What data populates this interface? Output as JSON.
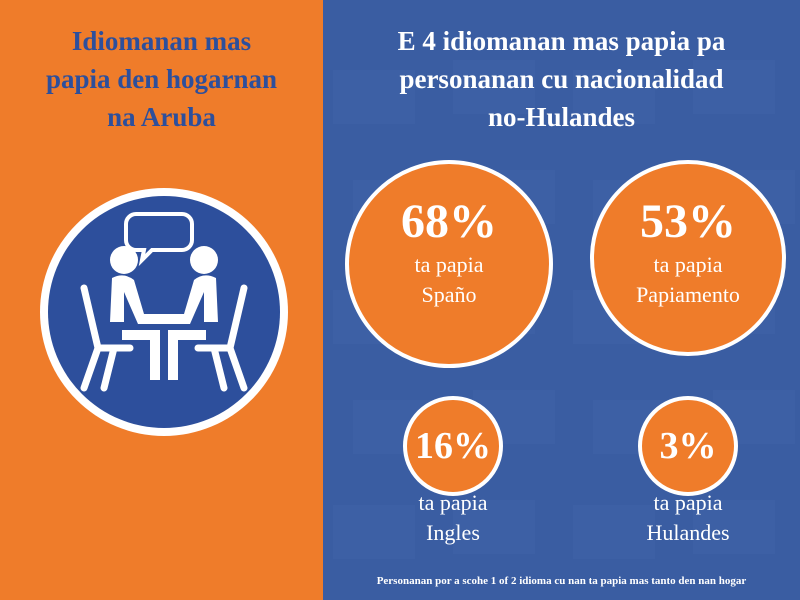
{
  "left_panel": {
    "title_lines": [
      "Idiomanan mas",
      "papia den hogarnan",
      "na Aruba"
    ],
    "icon": "two-people-conversation-icon",
    "colors": {
      "background": "#ef7c2a",
      "circle": "#2d4f9c",
      "title": "#2d4f9c"
    }
  },
  "right_panel": {
    "title_lines": [
      "E 4 idiomanan mas papia pa",
      "personanan cu nacionalidad",
      "no-Hulandes"
    ],
    "colors": {
      "background": "#3a5da2",
      "bubble": "#ef7c2a",
      "text": "#ffffff"
    },
    "stats": [
      {
        "percent": "68%",
        "verb": "ta papia",
        "language": "Spaño"
      },
      {
        "percent": "53%",
        "verb": "ta papia",
        "language": "Papiamento"
      },
      {
        "percent": "16%",
        "verb": "ta papia",
        "language": "Ingles"
      },
      {
        "percent": "3%",
        "verb": "ta papia",
        "language": "Hulandes"
      }
    ],
    "footnote": "Personanan por a scohe 1 of 2 idioma cu nan ta papia mas tanto den nan hogar"
  }
}
